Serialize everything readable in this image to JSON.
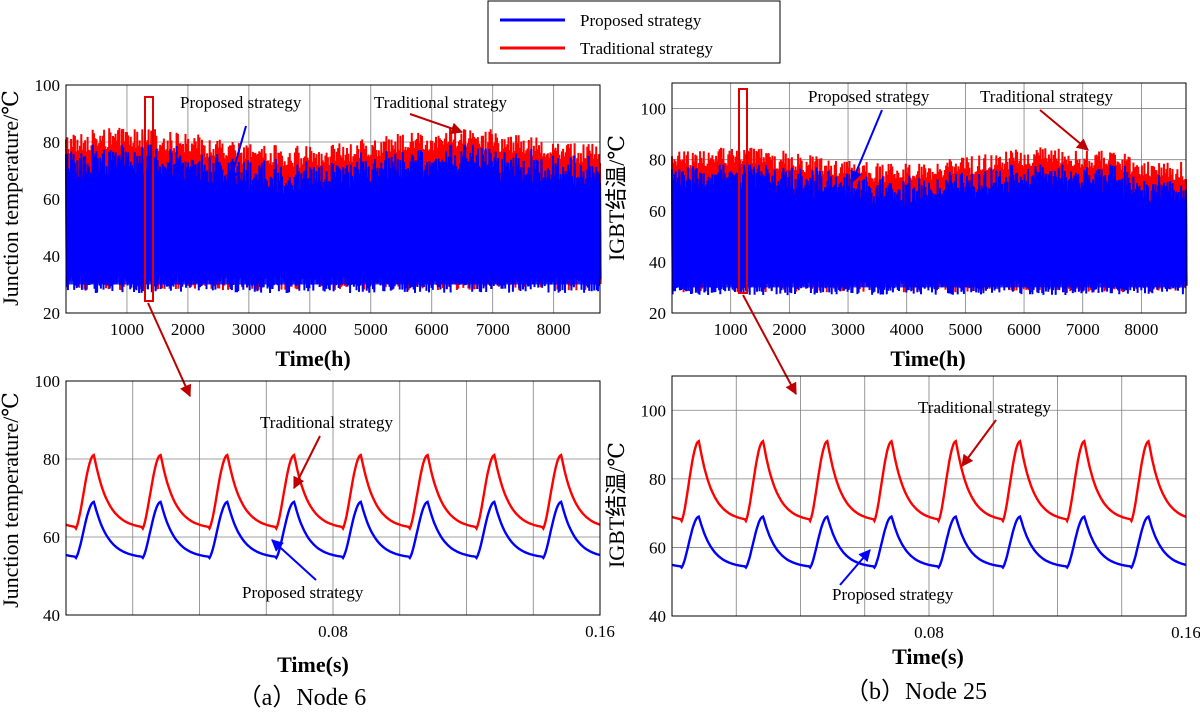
{
  "legend": {
    "entries": [
      {
        "label": "Proposed strategy",
        "color": "#0000ff"
      },
      {
        "label": "Traditional strategy",
        "color": "#ff0000"
      }
    ]
  },
  "colors": {
    "proposed": "#0000ff",
    "traditional": "#ff0000",
    "grid": "#808080",
    "arrow": "#c00000"
  },
  "captions": {
    "a": "（a）Node 6",
    "b": "（b）Node 25"
  },
  "chart_data": [
    {
      "id": "a-top",
      "type": "line",
      "ylabel": "Junction temperature/℃",
      "xlabel": "Time(h)",
      "xlim": [
        0,
        8760
      ],
      "ylim": [
        20,
        100
      ],
      "xticks": [
        1000,
        2000,
        3000,
        4000,
        5000,
        6000,
        7000,
        8000
      ],
      "yticks": [
        20,
        40,
        60,
        80,
        100
      ],
      "annotations": [
        "Proposed strategy",
        "Traditional strategy"
      ],
      "series": [
        {
          "name": "Proposed strategy",
          "min": 27,
          "max": 79
        },
        {
          "name": "Traditional strategy",
          "min": 28,
          "max": 85
        }
      ],
      "zoom_window": [
        1300,
        1400
      ]
    },
    {
      "id": "a-bottom",
      "type": "line",
      "ylabel": "Junction temperature/℃",
      "xlabel": "Time(s)",
      "xlim": [
        0,
        0.16
      ],
      "ylim": [
        40,
        100
      ],
      "xticks": [
        0.08,
        0.16
      ],
      "yticks": [
        40,
        60,
        80,
        100
      ],
      "annotations": [
        "Traditional strategy",
        "Proposed strategy"
      ],
      "series": [
        {
          "name": "Traditional strategy",
          "base": 62,
          "peak": 81,
          "cycles": 8
        },
        {
          "name": "Proposed strategy",
          "base": 54.5,
          "peak": 69,
          "cycles": 8
        }
      ]
    },
    {
      "id": "b-top",
      "type": "line",
      "ylabel": "IGBT结温/℃",
      "xlabel": "Time(h)",
      "xlim": [
        0,
        8760
      ],
      "ylim": [
        20,
        110
      ],
      "xticks": [
        1000,
        2000,
        3000,
        4000,
        5000,
        6000,
        7000,
        8000
      ],
      "yticks": [
        20,
        40,
        60,
        80,
        100
      ],
      "annotations": [
        "Proposed strategy",
        "Traditional strategy"
      ],
      "series": [
        {
          "name": "Proposed strategy",
          "min": 27,
          "max": 78
        },
        {
          "name": "Traditional strategy",
          "min": 28,
          "max": 85
        }
      ],
      "zoom_window": [
        1150,
        1250
      ]
    },
    {
      "id": "b-bottom",
      "type": "line",
      "ylabel": "IGBT结温/℃",
      "xlabel": "Time(s)",
      "xlim": [
        0,
        0.16
      ],
      "ylim": [
        40,
        110
      ],
      "xticks": [
        0.08,
        0.16
      ],
      "yticks": [
        40,
        60,
        80,
        100
      ],
      "annotations": [
        "Traditional strategy",
        "Proposed strategy"
      ],
      "series": [
        {
          "name": "Traditional strategy",
          "base": 67.5,
          "peak": 91,
          "cycles": 8
        },
        {
          "name": "Proposed strategy",
          "base": 54,
          "peak": 69,
          "cycles": 8
        }
      ]
    }
  ]
}
